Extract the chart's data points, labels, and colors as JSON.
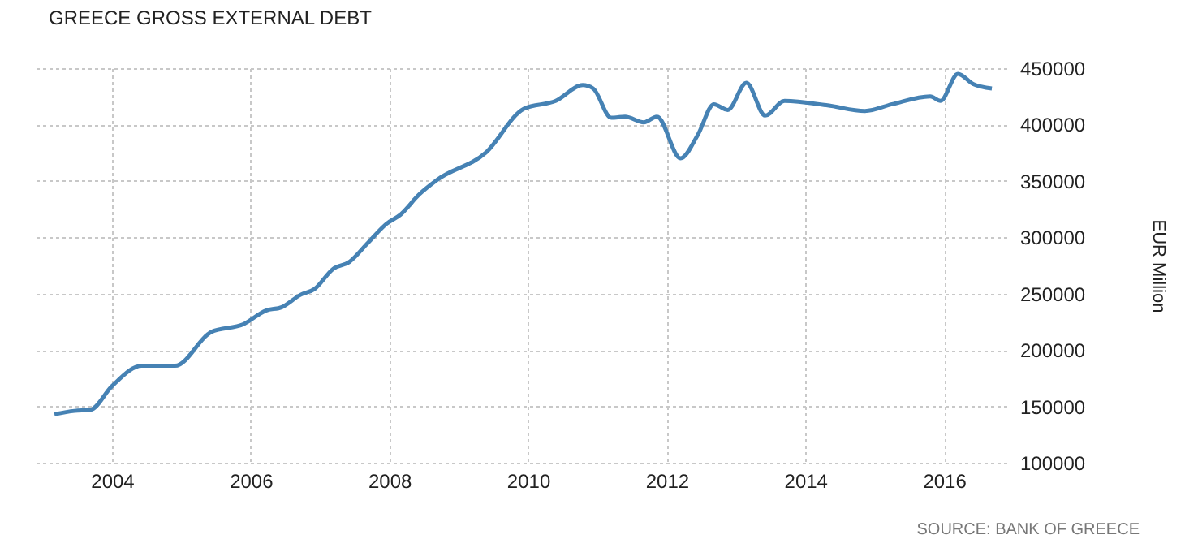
{
  "chart_data": {
    "type": "line",
    "title": "GREECE GROSS EXTERNAL DEBT",
    "ylabel": "EUR Million",
    "annotations": [
      "SOURCE: BANK OF GREECE"
    ],
    "x": [
      2003.17,
      2003.46,
      2003.69,
      2004.0,
      2004.43,
      2004.91,
      2005.43,
      2005.9,
      2006.22,
      2006.45,
      2006.72,
      2006.92,
      2007.19,
      2007.42,
      2007.69,
      2007.96,
      2008.16,
      2008.43,
      2008.69,
      2009.39,
      2009.94,
      2010.4,
      2010.79,
      2010.94,
      2011.2,
      2011.4,
      2011.67,
      2011.86,
      2012.2,
      2012.45,
      2012.68,
      2012.88,
      2013.15,
      2013.42,
      2013.7,
      2014.32,
      2014.86,
      2015.25,
      2015.8,
      2015.95,
      2016.2,
      2016.42,
      2016.69
    ],
    "series": [
      {
        "color": "#4682b4",
        "values": [
          143000,
          146000,
          147000,
          168000,
          186000,
          186000,
          216000,
          223000,
          235000,
          238000,
          249000,
          254000,
          272000,
          278000,
          295000,
          312000,
          320000,
          338000,
          351000,
          375000,
          414000,
          421000,
          435000,
          432000,
          406000,
          407000,
          402000,
          407000,
          370000,
          391000,
          418000,
          413000,
          437000,
          408000,
          421000,
          417000,
          412000,
          418000,
          425000,
          421000,
          445000,
          436000,
          432000
        ]
      }
    ],
    "xlim": [
      2002.9,
      2016.9
    ],
    "xticks": [
      2004,
      2006,
      2008,
      2010,
      2012,
      2014,
      2016
    ],
    "ylim": [
      100000,
      450000
    ],
    "yticks": [
      100000,
      150000,
      200000,
      250000,
      300000,
      350000,
      400000,
      450000
    ],
    "grid": true,
    "marker": "none",
    "line_style": "solid"
  }
}
